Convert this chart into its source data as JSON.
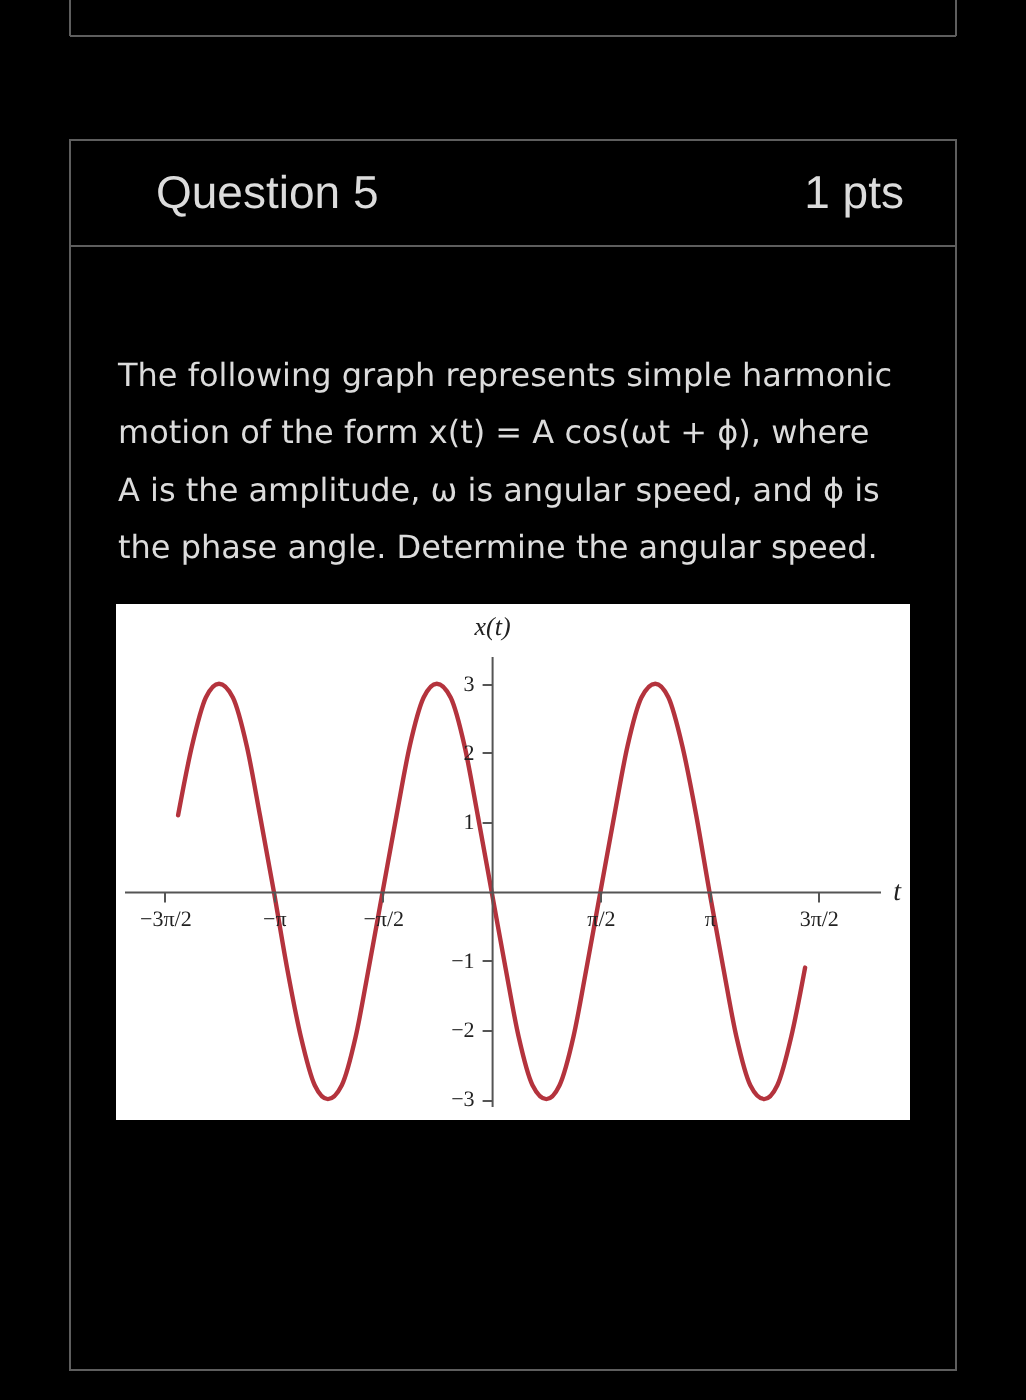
{
  "chart_data": {
    "type": "line",
    "title": "Question 5",
    "subtitle": "The following graph represents simple harmonic motion of the form x(t) = A cos(ωt + ϕ), where A is the amplitude, ω is angular speed, and ϕ is the phase angle. Determine the angular speed.",
    "annotations": [
      "1 pts"
    ],
    "xlabel": "t",
    "ylabel": "x(t)",
    "x": [
      -4.52,
      -4.32,
      -4.12,
      -3.93,
      -3.73,
      -3.53,
      -3.34,
      -3.14,
      -2.95,
      -2.75,
      -2.55,
      -2.36,
      -2.16,
      -1.96,
      -1.77,
      -1.57,
      -1.37,
      -1.18,
      -0.98,
      -0.79,
      -0.59,
      -0.39,
      -0.2,
      0,
      0.2,
      0.39,
      0.59,
      0.79,
      0.98,
      1.18,
      1.37,
      1.57,
      1.77,
      1.96,
      2.16,
      2.36,
      2.55,
      2.75,
      2.95,
      3.14,
      3.34,
      3.53,
      3.73,
      3.93,
      4.12,
      4.32,
      4.52
    ],
    "series": [
      {
        "color": "#b4333d",
        "values": [
          1.1,
          2.1,
          2.8,
          3,
          2.8,
          2.1,
          1.1,
          0,
          -1.1,
          -2.1,
          -2.8,
          -3,
          -2.8,
          -2.1,
          -1.1,
          0,
          1.1,
          2.1,
          2.8,
          3,
          2.8,
          2.1,
          1.1,
          0,
          -1.1,
          -2.1,
          -2.8,
          -3,
          -2.8,
          -2.1,
          -1.1,
          0,
          1.1,
          2.1,
          2.8,
          3,
          2.8,
          2.1,
          1.1,
          0,
          -1.1,
          -2.1,
          -2.8,
          -3,
          -2.8,
          -2.1,
          -1.1
        ]
      }
    ],
    "xlim": [
      -5.3,
      5.6
    ],
    "ylim": [
      -3.1,
      3.4
    ],
    "xticks": [
      {
        "value": -4.71,
        "label": "−3π/2"
      },
      {
        "value": -3.14,
        "label": "−π"
      },
      {
        "value": -1.57,
        "label": "−π/2"
      },
      {
        "value": 1.57,
        "label": "π/2"
      },
      {
        "value": 3.14,
        "label": "π"
      },
      {
        "value": 4.71,
        "label": "3π/2"
      }
    ],
    "yticks": [
      -3,
      -2,
      -1,
      1,
      2,
      3
    ]
  }
}
